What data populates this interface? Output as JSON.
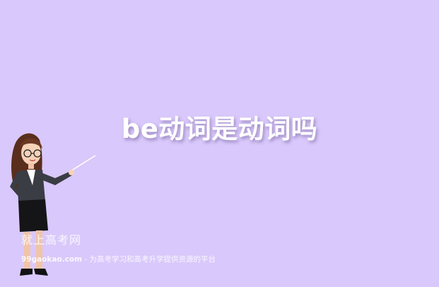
{
  "page": {
    "background": "#d9c8fb",
    "title": "be动词是动词吗"
  },
  "watermark": {
    "brand": "就上高考网",
    "site": "99gaokao.com",
    "separator": " - ",
    "tagline": "为高考学习和高考升学提供资源的平台"
  },
  "illustration": {
    "icon": "teacher-with-pointer-icon"
  }
}
